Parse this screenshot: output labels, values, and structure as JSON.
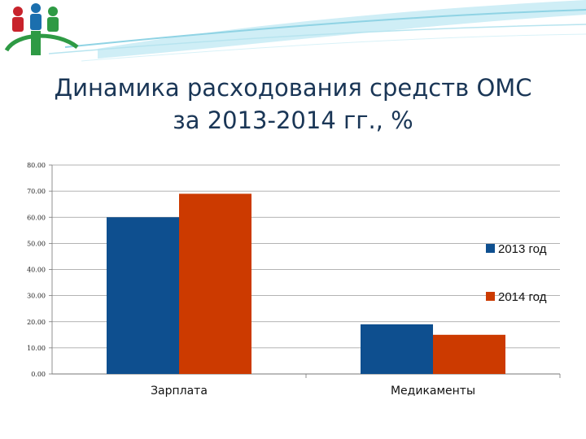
{
  "title_lines": [
    "Динамика расходования средств ОМС",
    "за 2013-2014 гг., %"
  ],
  "colors": {
    "bg": "#ffffff",
    "swoosh": "#8fd3e4",
    "logo_green": "#2e9a44",
    "logo_red": "#c8232c",
    "logo_blue": "#1b6fae"
  },
  "logo": {
    "name": "logo-icon"
  },
  "chart_data": {
    "type": "bar",
    "categories": [
      "Зарплата",
      "Медикаменты"
    ],
    "series": [
      {
        "name": "2013 год",
        "color": "#0e4f8f",
        "values": [
          60.0,
          19.0
        ]
      },
      {
        "name": "2014 год",
        "color": "#cc3a00",
        "values": [
          69.0,
          15.0
        ]
      }
    ],
    "ylim": [
      0,
      80
    ],
    "yticks": [
      "0.00",
      "10.00",
      "20.00",
      "30.00",
      "40.00",
      "50.00",
      "60.00",
      "70.00",
      "80.00"
    ],
    "grid": true,
    "legend": "right"
  }
}
